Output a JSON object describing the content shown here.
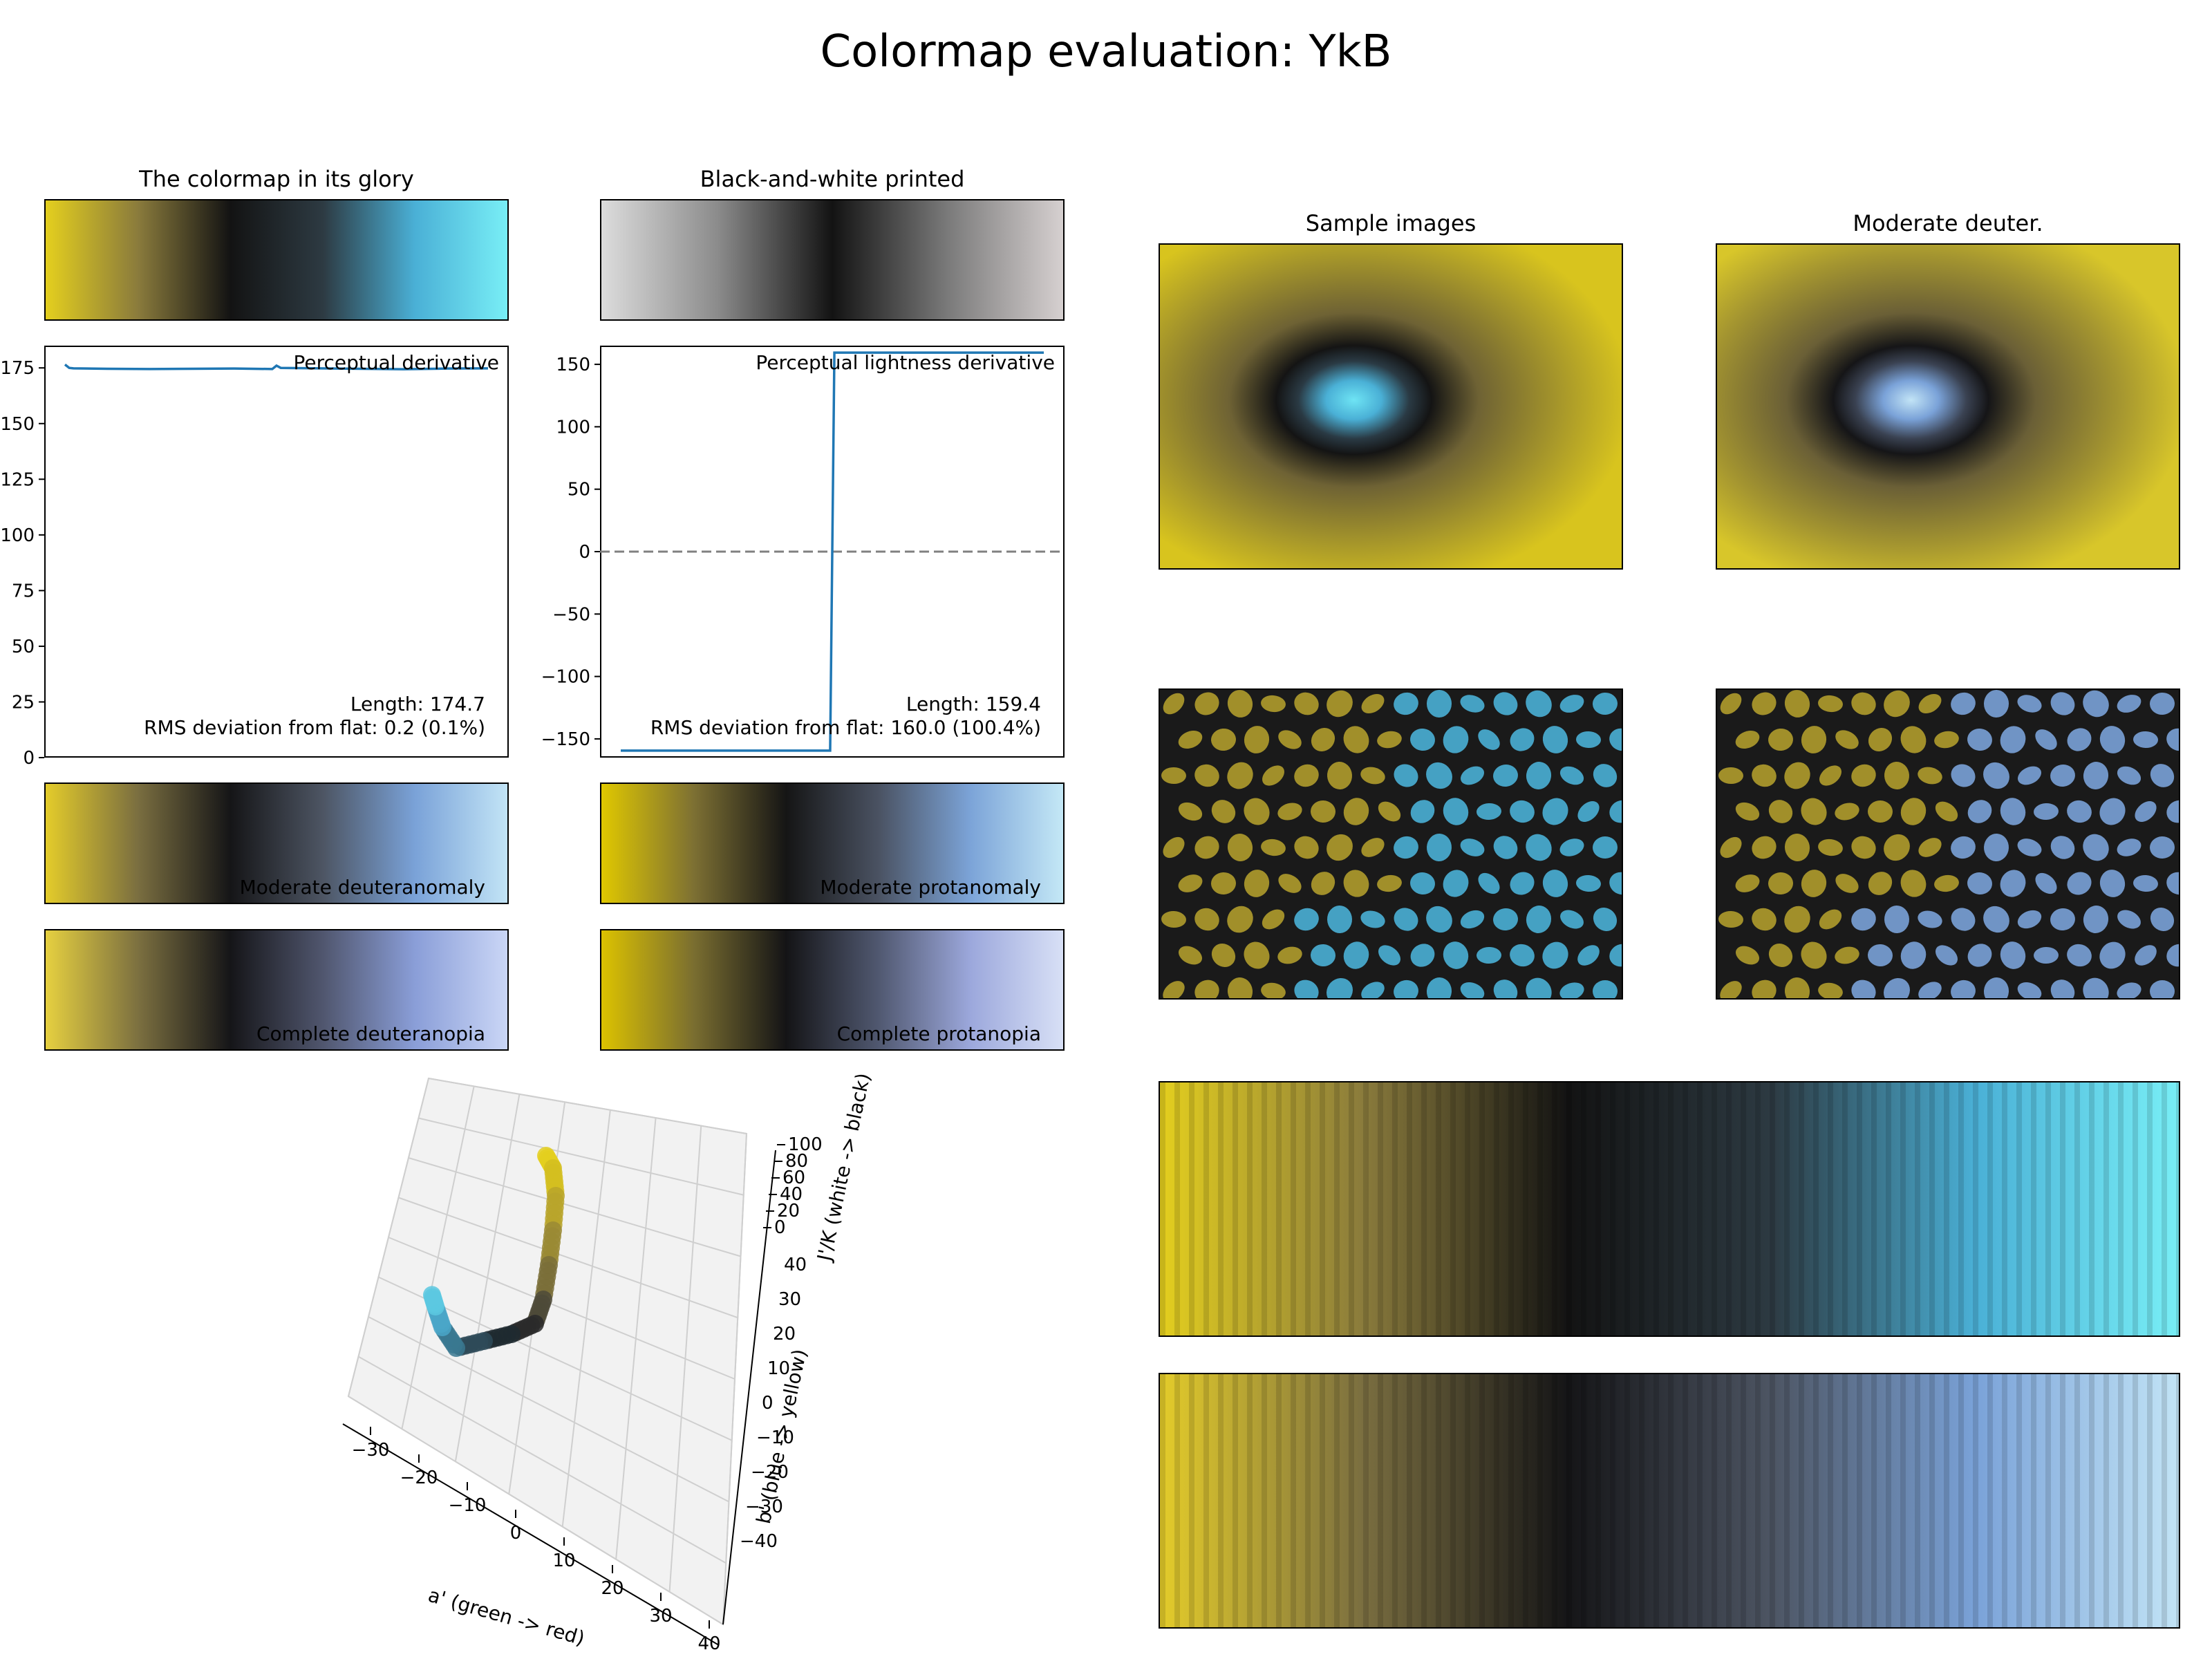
{
  "title": "Colormap evaluation: YkB",
  "colors": {
    "line": "#1f77b4",
    "zero_line": "#808080",
    "cmap": [
      "#e4cf1e",
      "#8a7b3c",
      "#131313",
      "#2d3a42",
      "#4ab0d6",
      "#78eef6"
    ],
    "bw": [
      "#dcdcdc",
      "#8c8c8c",
      "#131313",
      "#7a7a7a",
      "#d6d0d0"
    ],
    "deutan_mod": [
      "#e4cc2a",
      "#7a6e40",
      "#151517",
      "#4d5563",
      "#7aa2d8",
      "#c2e4f6"
    ],
    "protan_mod": [
      "#e0c800",
      "#7d7033",
      "#151515",
      "#4a5262",
      "#7ca4d8",
      "#c4e8f6"
    ],
    "deutan_full": [
      "#e6d040",
      "#7c7040",
      "#151518",
      "#50566e",
      "#8a9ed8",
      "#cad6f6"
    ],
    "protan_full": [
      "#dcc200",
      "#7a6e30",
      "#141416",
      "#505870",
      "#9ca8dc",
      "#d8e0f6"
    ]
  },
  "panels": {
    "glory": "The colormap in its glory",
    "bw": "Black-and-white printed",
    "sample": "Sample images",
    "mod_deuter": "Moderate deuter."
  },
  "strips": {
    "mod_deut": "Moderate deuteranomaly",
    "mod_prot": "Moderate protanomaly",
    "full_deut": "Complete deuteranopia",
    "full_prot": "Complete protanopia"
  },
  "chart_data": [
    {
      "type": "line",
      "title": "Perceptual derivative",
      "ylim": [
        0,
        185
      ],
      "yticks": [
        "0",
        "25",
        "50",
        "75",
        "100",
        "125",
        "150",
        "175"
      ],
      "x": [
        0,
        0.01,
        0.02,
        0.1,
        0.2,
        0.3,
        0.4,
        0.49,
        0.5,
        0.51,
        0.6,
        0.7,
        0.8,
        0.9,
        1.0
      ],
      "y": [
        176.5,
        175.0,
        174.8,
        174.6,
        174.5,
        174.6,
        174.7,
        174.5,
        176.0,
        175.0,
        174.8,
        174.6,
        174.4,
        174.7,
        174.8
      ],
      "annotation_length": "Length: 174.7",
      "annotation_rms": "RMS deviation from flat: 0.2 (0.1%)"
    },
    {
      "type": "line",
      "title": "Perceptual lightness derivative",
      "ylim": [
        -165,
        165
      ],
      "yticks": [
        "150",
        "100",
        "50",
        "0",
        "−50",
        "−100",
        "−150"
      ],
      "x": [
        0,
        0.495,
        0.505,
        1.0
      ],
      "y": [
        -159.4,
        -159.4,
        159.4,
        159.4
      ],
      "zero_line": true,
      "annotation_length": "Length: 159.4",
      "annotation_rms": "RMS deviation from flat: 160.0 (100.4%)"
    }
  ],
  "gamut3d": {
    "a_ticks": [
      "−30",
      "−20",
      "−10",
      "0",
      "10",
      "20",
      "30",
      "40"
    ],
    "b_ticks": [
      "40",
      "30",
      "20",
      "10",
      "0",
      "−10",
      "−20",
      "−30",
      "−40"
    ],
    "j_ticks": [
      "100",
      "80",
      "60",
      "40",
      "20",
      "0"
    ],
    "a_label": "a' (green -> red)",
    "b_label": "b' (blue -> yellow)",
    "j_label": "J'/K (white -> black)"
  }
}
